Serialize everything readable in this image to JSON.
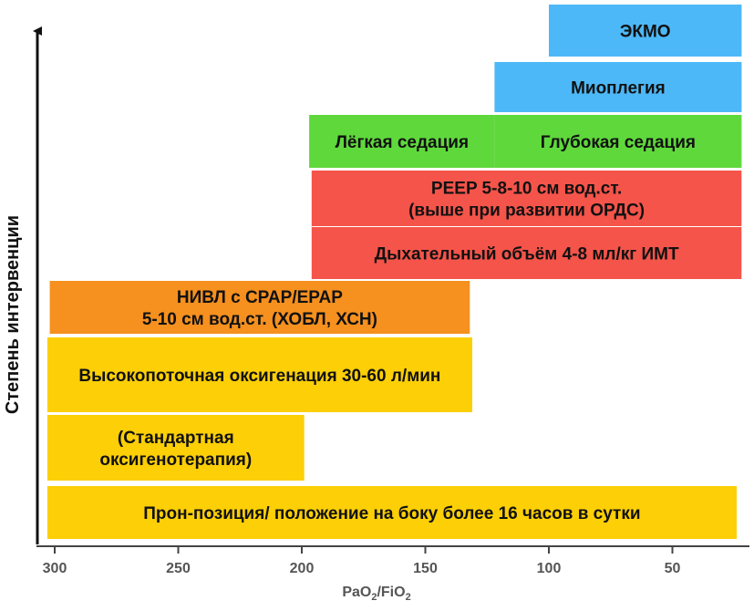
{
  "chart_data": {
    "type": "range-bar",
    "title": "",
    "xlabel": "PaO2/FiO2",
    "ylabel": "Степень интервенции",
    "xlim": [
      305,
      22
    ],
    "xticks": [
      300,
      250,
      200,
      150,
      100,
      50
    ],
    "colors": {
      "cyan": "#4db8f7",
      "green": "#5fd83c",
      "red": "#f5544a",
      "orange": "#f6901e",
      "yellow": "#fccf06"
    },
    "bars": [
      {
        "id": "ecmo",
        "lines": [
          "ЭКМО"
        ],
        "x_from": 100,
        "x_to": 22,
        "level": 9,
        "color": "cyan"
      },
      {
        "id": "myoplegia",
        "lines": [
          "Миоплегия"
        ],
        "x_from": 122,
        "x_to": 22,
        "level": 8,
        "color": "cyan"
      },
      {
        "id": "light-sedation",
        "lines": [
          "Лёгкая седация"
        ],
        "x_from": 197,
        "x_to": 122,
        "level": 7,
        "color": "green"
      },
      {
        "id": "deep-sedation",
        "lines": [
          "Глубокая седация"
        ],
        "x_from": 122,
        "x_to": 22,
        "level": 7,
        "color": "green"
      },
      {
        "id": "peep",
        "lines": [
          "PEEP 5-8-10 см вод.ст.",
          "(выше при развитии ОРДС)"
        ],
        "x_from": 196,
        "x_to": 22,
        "level": 6,
        "color": "red"
      },
      {
        "id": "tidal-volume",
        "lines": [
          "Дыхательный объём 4-8 мл/кг ИМТ"
        ],
        "x_from": 196,
        "x_to": 22,
        "level": 5,
        "color": "red"
      },
      {
        "id": "niv",
        "lines": [
          "НИВЛ с CPAP/EPAP",
          "5-10 см вод.ст. (ХОБЛ, ХСН)"
        ],
        "x_from": 302,
        "x_to": 132,
        "level": 4,
        "color": "orange"
      },
      {
        "id": "high-flow",
        "lines": [
          "Высокопоточная оксигенация 30-60 л/мин"
        ],
        "x_from": 303,
        "x_to": 131,
        "level": 3,
        "color": "yellow"
      },
      {
        "id": "standard-o2",
        "lines": [
          "(Стандартная",
          "оксигенотерапия)"
        ],
        "x_from": 303,
        "x_to": 199,
        "level": 2,
        "color": "yellow"
      },
      {
        "id": "prone",
        "lines": [
          "Прон-позиция/ положение на боку более 16 часов в сутки"
        ],
        "x_from": 303,
        "x_to": 24,
        "level": 1,
        "color": "yellow"
      }
    ]
  }
}
